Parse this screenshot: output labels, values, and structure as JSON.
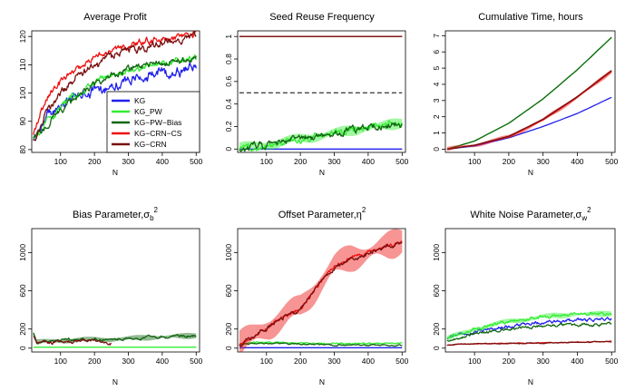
{
  "figure": {
    "legend": {
      "entries": [
        {
          "label": "KG",
          "color": "#2020ee"
        },
        {
          "label": "KG_PW",
          "color": "#33ee33"
        },
        {
          "label": "KG−PW−Bias",
          "color": "#116611"
        },
        {
          "label": "KG−CRN−CS",
          "color": "#ee1111"
        },
        {
          "label": "KG−CRN",
          "color": "#7a1010"
        }
      ]
    }
  },
  "chart_data": [
    {
      "id": "avg-profit",
      "type": "line",
      "title": "Average Profit",
      "title_sub": "",
      "title_sup": "",
      "xlabel": "N",
      "ylabel": "",
      "xlim": [
        15,
        510
      ],
      "ylim": [
        79,
        122
      ],
      "xticks": [
        100,
        200,
        300,
        400,
        500
      ],
      "yticks": [
        80,
        90,
        100,
        110,
        120
      ],
      "legend_position": "bottom-right",
      "series": [
        {
          "name": "KG",
          "color": "#2020ee",
          "x": [
            20,
            40,
            60,
            100,
            150,
            200,
            250,
            300,
            350,
            400,
            450,
            500
          ],
          "y": [
            83,
            88,
            92,
            96,
            99,
            101,
            103,
            104.5,
            106,
            107,
            108,
            109
          ],
          "noise": 1.2
        },
        {
          "name": "KG_PW",
          "color": "#33ee33",
          "x": [
            20,
            40,
            60,
            100,
            150,
            200,
            250,
            300,
            350,
            400,
            450,
            500
          ],
          "y": [
            84,
            87,
            90,
            95,
            100,
            104,
            106.5,
            108,
            109.5,
            110.5,
            111.5,
            112.5
          ],
          "noise": 0.8
        },
        {
          "name": "KG−PW−Bias",
          "color": "#116611",
          "x": [
            20,
            40,
            60,
            100,
            150,
            200,
            250,
            300,
            350,
            400,
            450,
            500
          ],
          "y": [
            84,
            86,
            89,
            94,
            99,
            103,
            106,
            108,
            109.5,
            110.5,
            111.5,
            112.5
          ],
          "noise": 0.8
        },
        {
          "name": "KG−CRN−CS",
          "color": "#ee1111",
          "x": [
            20,
            40,
            60,
            100,
            150,
            200,
            250,
            300,
            350,
            400,
            450,
            500
          ],
          "y": [
            85,
            93,
            98,
            104,
            109,
            113,
            115.5,
            117,
            118,
            119,
            120,
            120.5
          ],
          "noise": 0.8
        },
        {
          "name": "KG−CRN",
          "color": "#7a1010",
          "x": [
            20,
            40,
            60,
            100,
            150,
            200,
            250,
            300,
            350,
            400,
            450,
            500
          ],
          "y": [
            83,
            89,
            94,
            100,
            106,
            110,
            113,
            115,
            116.5,
            117.5,
            118.5,
            119.5
          ],
          "noise": 1.0
        }
      ]
    },
    {
      "id": "seed-reuse",
      "type": "line",
      "title": "Seed Reuse Frequency",
      "title_sub": "",
      "title_sup": "",
      "xlabel": "N",
      "ylabel": "",
      "xlim": [
        15,
        510
      ],
      "ylim": [
        -0.03,
        1.05
      ],
      "xticks": [
        100,
        200,
        300,
        400,
        500
      ],
      "yticks": [
        0.0,
        0.2,
        0.4,
        0.6,
        0.8,
        1.0
      ],
      "reference_line": {
        "y": 0.5,
        "style": "dashed",
        "color": "#000000"
      },
      "series": [
        {
          "name": "KG",
          "color": "#2020ee",
          "x": [
            20,
            500
          ],
          "y": [
            0.0,
            0.0
          ],
          "noise": 0
        },
        {
          "name": "KG_PW",
          "color": "#33ee33",
          "x": [
            20,
            100,
            200,
            300,
            400,
            500
          ],
          "y": [
            0.01,
            0.04,
            0.09,
            0.14,
            0.19,
            0.23
          ],
          "noise": 0.02,
          "band": 0.04
        },
        {
          "name": "KG−PW−Bias",
          "color": "#116611",
          "x": [
            20,
            100,
            200,
            300,
            400,
            500
          ],
          "y": [
            0.01,
            0.04,
            0.09,
            0.14,
            0.19,
            0.22
          ],
          "noise": 0.02
        },
        {
          "name": "KG−CRN−CS",
          "color": "#ee1111",
          "x": [
            20,
            500
          ],
          "y": [
            1.0,
            1.0
          ],
          "noise": 0
        },
        {
          "name": "KG−CRN",
          "color": "#7a1010",
          "x": [
            20,
            500
          ],
          "y": [
            1.0,
            1.0
          ],
          "noise": 0
        }
      ]
    },
    {
      "id": "cumulative-time",
      "type": "line",
      "title": "Cumulative Time, hours",
      "title_sub": "",
      "title_sup": "",
      "xlabel": "N",
      "ylabel": "",
      "xlim": [
        15,
        510
      ],
      "ylim": [
        -0.2,
        7.3
      ],
      "xticks": [
        100,
        200,
        300,
        400,
        500
      ],
      "yticks": [
        0,
        1,
        2,
        3,
        4,
        5,
        6,
        7
      ],
      "series": [
        {
          "name": "KG",
          "color": "#2020ee",
          "x": [
            20,
            100,
            200,
            300,
            400,
            500
          ],
          "y": [
            0,
            0.2,
            0.7,
            1.4,
            2.2,
            3.2
          ],
          "noise": 0
        },
        {
          "name": "KG_PW",
          "color": "#33ee33",
          "x": [
            20,
            100,
            200,
            300,
            400,
            500
          ],
          "y": [
            0,
            0.5,
            1.6,
            3.1,
            4.9,
            6.9
          ],
          "noise": 0
        },
        {
          "name": "KG−PW−Bias",
          "color": "#116611",
          "x": [
            20,
            100,
            200,
            300,
            400,
            500
          ],
          "y": [
            0,
            0.5,
            1.6,
            3.1,
            4.9,
            6.9
          ],
          "noise": 0
        },
        {
          "name": "KG−CRN−CS",
          "color": "#ee1111",
          "x": [
            20,
            100,
            200,
            300,
            400,
            500
          ],
          "y": [
            0,
            0.25,
            0.75,
            1.8,
            3.2,
            4.8
          ],
          "noise": 0,
          "band": 0.12
        },
        {
          "name": "KG−CRN",
          "color": "#7a1010",
          "x": [
            20,
            100,
            200,
            300,
            400,
            500
          ],
          "y": [
            0,
            0.25,
            0.8,
            1.85,
            3.25,
            4.85
          ],
          "noise": 0
        }
      ]
    },
    {
      "id": "bias-parameter",
      "type": "line",
      "title": "Bias Parameter,σ",
      "title_sub": "b",
      "title_sup": "2",
      "xlabel": "N",
      "ylabel": "",
      "xlim": [
        15,
        510
      ],
      "ylim": [
        -40,
        1250
      ],
      "xticks": [
        100,
        200,
        300,
        400,
        500
      ],
      "yticks": [
        0,
        200,
        600,
        1000
      ],
      "series": [
        {
          "name": "KG_PW",
          "color": "#33ee33",
          "x": [
            20,
            500
          ],
          "y": [
            10,
            10
          ],
          "noise": 0
        },
        {
          "name": "KG−PW−Bias",
          "color": "#116611",
          "x": [
            20,
            30,
            60,
            100,
            200,
            300,
            400,
            500
          ],
          "y": [
            150,
            60,
            70,
            80,
            90,
            100,
            120,
            130
          ],
          "noise": 10,
          "band": 25
        },
        {
          "name": "KG−CRN",
          "color": "#7a1010",
          "x": [
            20,
            30,
            60,
            100,
            150,
            200,
            250
          ],
          "y": [
            120,
            60,
            50,
            60,
            70,
            80,
            60
          ],
          "noise": 12
        }
      ]
    },
    {
      "id": "offset-parameter",
      "type": "line",
      "title": "Offset Parameter,η",
      "title_sub": "",
      "title_sup": "2",
      "xlabel": "N",
      "ylabel": "",
      "xlim": [
        15,
        510
      ],
      "ylim": [
        -40,
        1250
      ],
      "xticks": [
        100,
        200,
        300,
        400,
        500
      ],
      "yticks": [
        0,
        200,
        600,
        1000
      ],
      "series": [
        {
          "name": "KG",
          "color": "#2020ee",
          "x": [
            20,
            500
          ],
          "y": [
            5,
            5
          ],
          "noise": 0
        },
        {
          "name": "KG_PW",
          "color": "#33ee33",
          "x": [
            20,
            100,
            300,
            500
          ],
          "y": [
            50,
            60,
            45,
            55
          ],
          "noise": 5
        },
        {
          "name": "KG−PW−Bias",
          "color": "#116611",
          "x": [
            20,
            100,
            300,
            500
          ],
          "y": [
            40,
            50,
            35,
            30
          ],
          "noise": 5
        },
        {
          "name": "KG−CRN−CS",
          "color": "#ee1111",
          "x": [
            20,
            60,
            100,
            150,
            200,
            230,
            260,
            300,
            350,
            400,
            450,
            500
          ],
          "y": [
            40,
            120,
            220,
            320,
            420,
            560,
            700,
            850,
            950,
            1000,
            1060,
            1120
          ],
          "noise": 12,
          "band": 120
        },
        {
          "name": "KG−CRN",
          "color": "#7a1010",
          "x": [
            20,
            60,
            100,
            150,
            200,
            230,
            260,
            300,
            350,
            400,
            450,
            500
          ],
          "y": [
            40,
            120,
            215,
            315,
            410,
            550,
            690,
            840,
            940,
            990,
            1050,
            1110
          ],
          "noise": 15
        }
      ]
    },
    {
      "id": "white-noise-parameter",
      "type": "line",
      "title": "White Noise Parameter,σ",
      "title_sub": "w",
      "title_sup": "2",
      "xlabel": "N",
      "ylabel": "",
      "xlim": [
        15,
        510
      ],
      "ylim": [
        -40,
        1250
      ],
      "xticks": [
        100,
        200,
        300,
        400,
        500
      ],
      "yticks": [
        0,
        200,
        600,
        1000
      ],
      "series": [
        {
          "name": "KG",
          "color": "#2020ee",
          "x": [
            20,
            50,
            100,
            200,
            300,
            400,
            500
          ],
          "y": [
            100,
            130,
            170,
            230,
            270,
            290,
            300
          ],
          "noise": 12
        },
        {
          "name": "KG_PW",
          "color": "#33ee33",
          "x": [
            20,
            50,
            100,
            200,
            300,
            400,
            500
          ],
          "y": [
            100,
            140,
            200,
            280,
            330,
            355,
            360
          ],
          "noise": 12,
          "band": 25
        },
        {
          "name": "KG−PW−Bias",
          "color": "#116611",
          "x": [
            20,
            50,
            100,
            200,
            300,
            400,
            500
          ],
          "y": [
            80,
            110,
            150,
            200,
            230,
            245,
            255
          ],
          "noise": 10
        },
        {
          "name": "KG−CRN−CS",
          "color": "#ee1111",
          "x": [
            20,
            50,
            100,
            200,
            300,
            400,
            500
          ],
          "y": [
            30,
            40,
            45,
            50,
            55,
            60,
            70
          ],
          "noise": 3
        },
        {
          "name": "KG−CRN",
          "color": "#7a1010",
          "x": [
            20,
            50,
            100,
            200,
            300,
            400,
            500
          ],
          "y": [
            30,
            40,
            45,
            50,
            55,
            60,
            70
          ],
          "noise": 3
        }
      ]
    }
  ]
}
